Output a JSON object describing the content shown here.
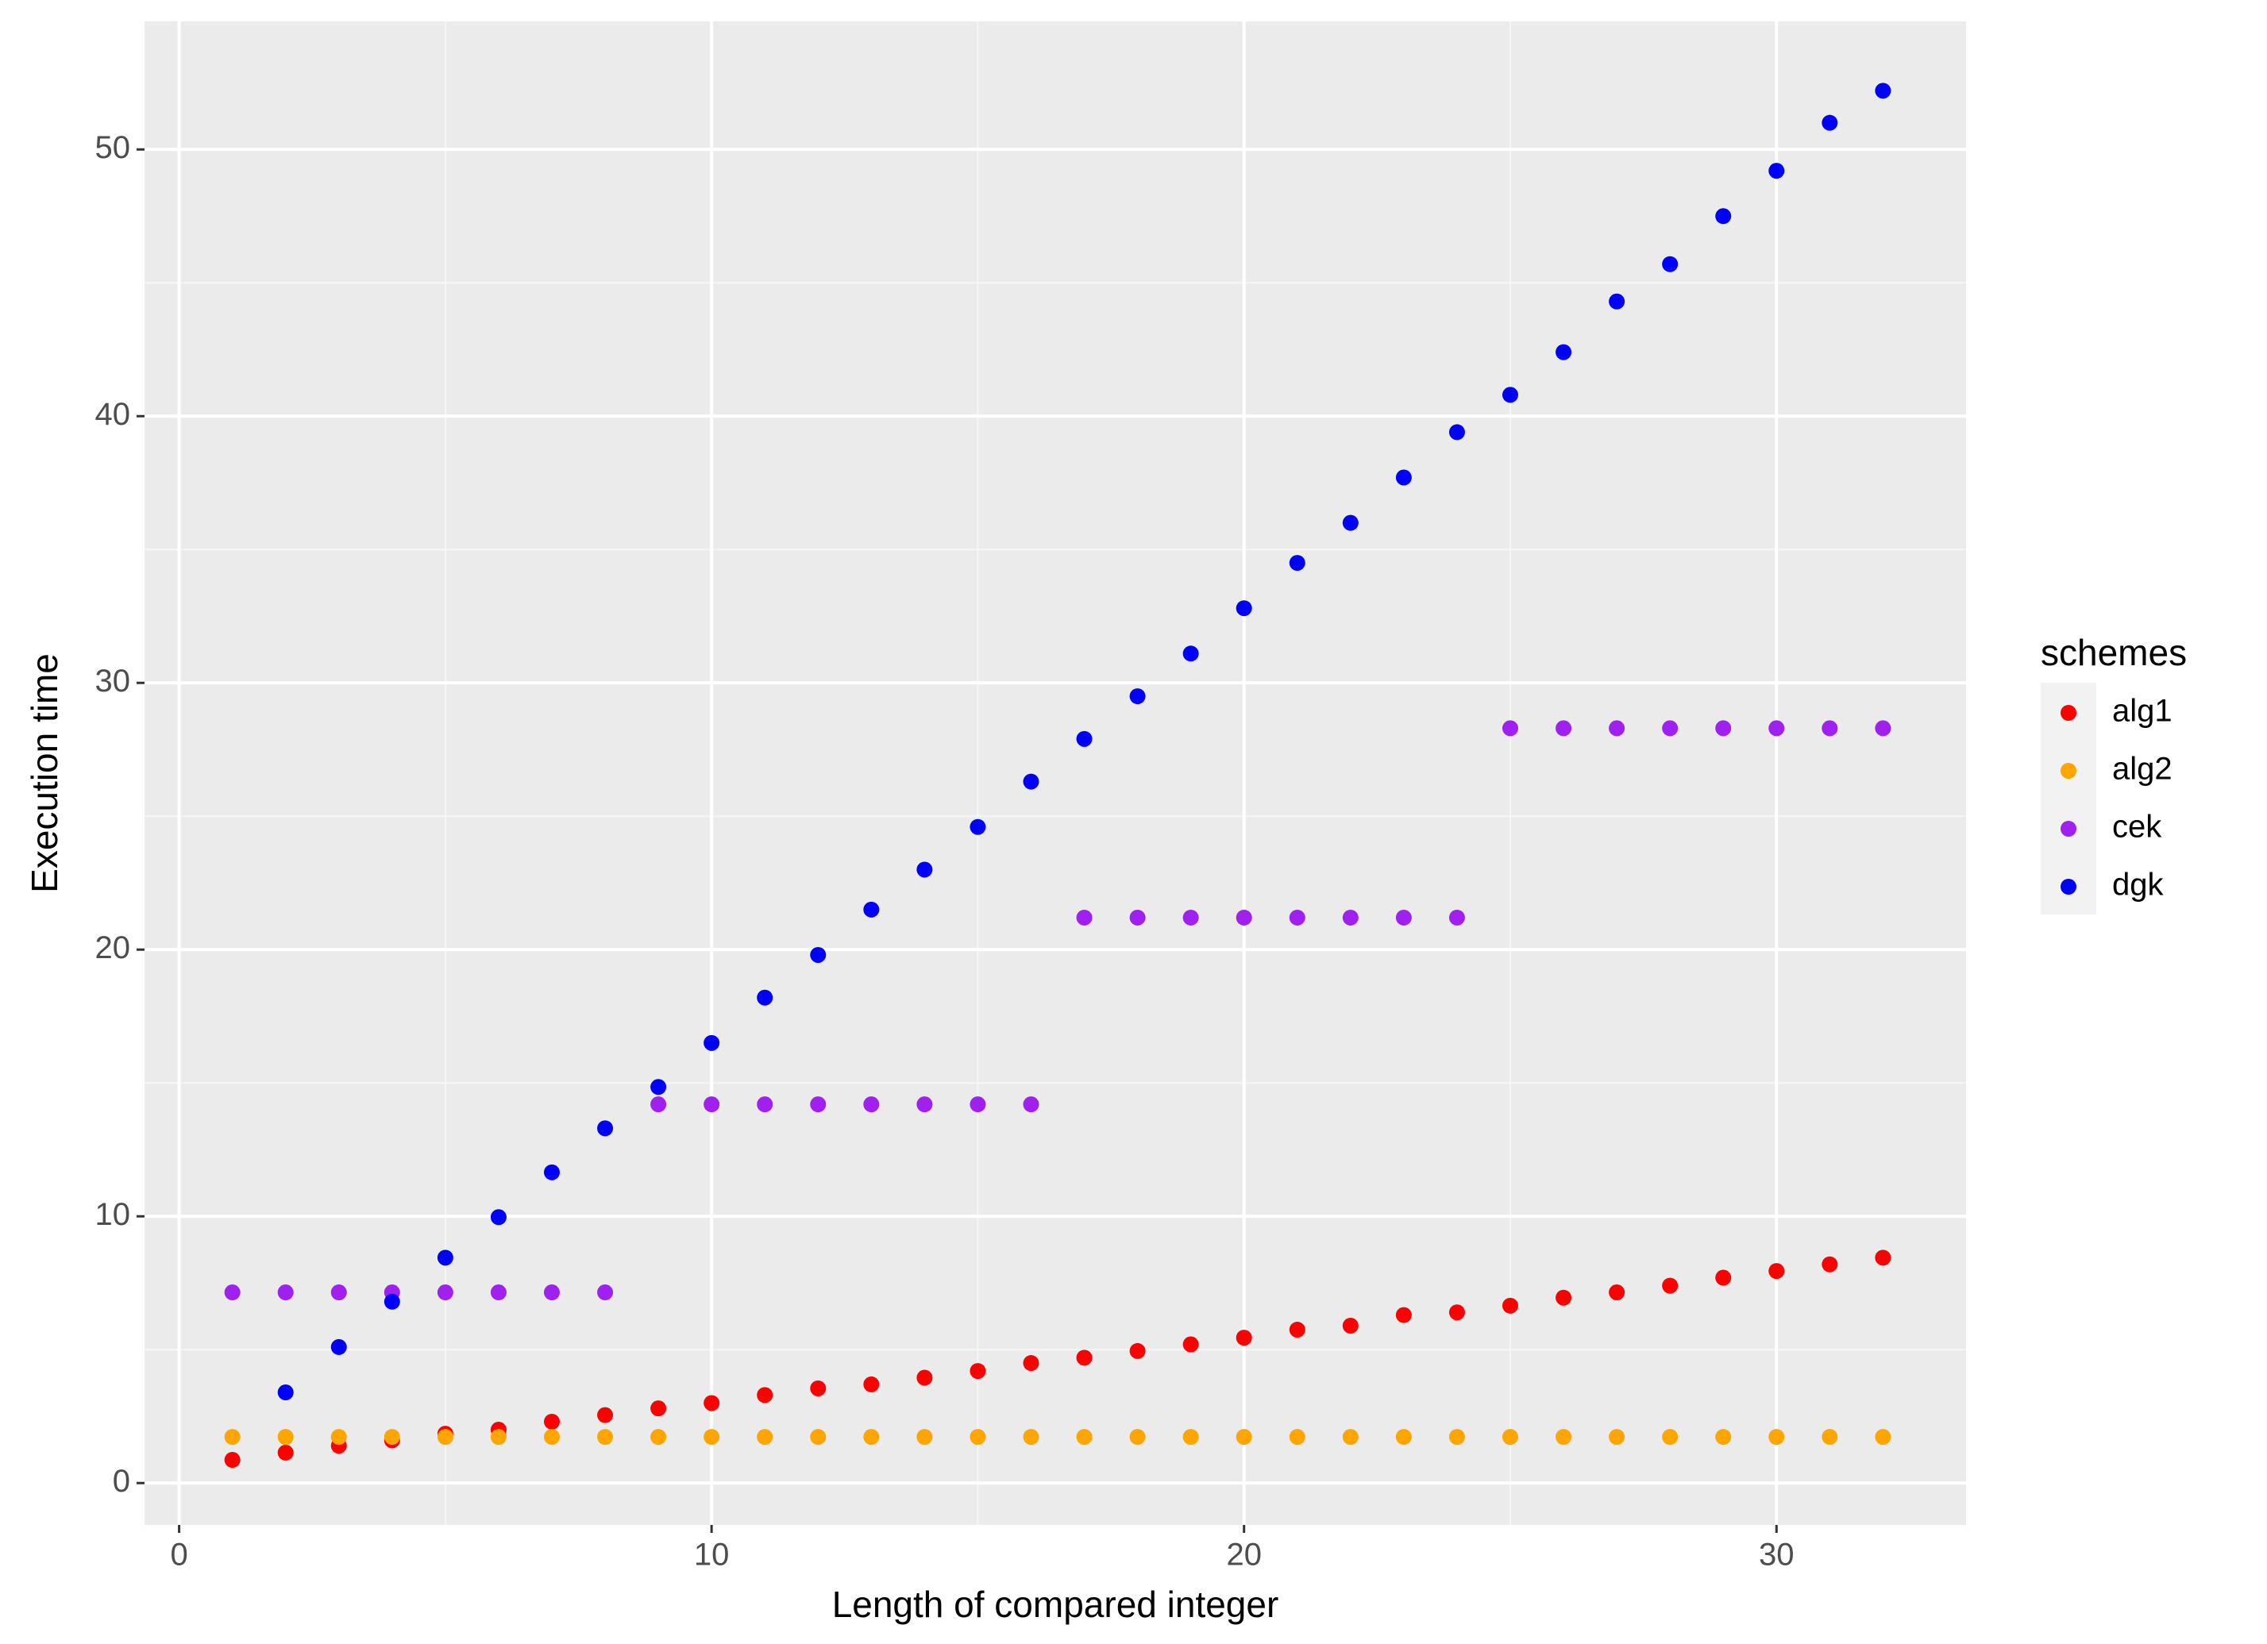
{
  "chart_data": {
    "type": "scatter",
    "x_label": "Length of compared integer",
    "y_label": "Execution time",
    "legend_title": "schemes",
    "legend_position": "right",
    "grid": true,
    "x": [
      1,
      2,
      3,
      4,
      5,
      6,
      7,
      8,
      9,
      10,
      11,
      12,
      13,
      14,
      15,
      16,
      17,
      18,
      19,
      20,
      21,
      22,
      23,
      24,
      25,
      26,
      27,
      28,
      29,
      30,
      31,
      32
    ],
    "xlim": [
      -0.65,
      33.56
    ],
    "ylim": [
      -1.57,
      54.8
    ],
    "xticks": [
      0,
      10,
      20,
      30
    ],
    "yticks": [
      0,
      10,
      20,
      30,
      40,
      50
    ],
    "series": [
      {
        "name": "alg1",
        "color": "#ff0000",
        "values": [
          0.87,
          1.14,
          1.4,
          1.6,
          1.85,
          2.0,
          2.3,
          2.55,
          2.8,
          3.0,
          3.3,
          3.55,
          3.7,
          3.95,
          4.2,
          4.5,
          4.7,
          4.95,
          5.2,
          5.45,
          5.75,
          5.9,
          6.3,
          6.4,
          6.65,
          6.95,
          7.15,
          7.4,
          7.7,
          7.95,
          8.2,
          8.45
        ]
      },
      {
        "name": "alg2",
        "color": "#ffa500",
        "values": [
          1.73,
          1.73,
          1.73,
          1.73,
          1.73,
          1.73,
          1.73,
          1.73,
          1.73,
          1.73,
          1.73,
          1.73,
          1.73,
          1.73,
          1.73,
          1.73,
          1.73,
          1.73,
          1.73,
          1.73,
          1.73,
          1.73,
          1.73,
          1.73,
          1.73,
          1.73,
          1.73,
          1.73,
          1.73,
          1.73,
          1.73,
          1.73
        ]
      },
      {
        "name": "cek",
        "color": "#a020f0",
        "values": [
          7.15,
          7.15,
          7.15,
          7.15,
          7.15,
          7.15,
          7.15,
          7.15,
          14.2,
          14.2,
          14.2,
          14.2,
          14.2,
          14.2,
          14.2,
          14.2,
          21.2,
          21.2,
          21.2,
          21.2,
          21.2,
          21.2,
          21.2,
          21.2,
          28.3,
          28.3,
          28.3,
          28.3,
          28.3,
          28.3,
          28.3,
          28.3
        ]
      },
      {
        "name": "dgk",
        "color": "#0000ff",
        "values": [
          null,
          3.4,
          5.1,
          6.8,
          8.45,
          9.97,
          11.65,
          13.3,
          14.85,
          16.5,
          18.2,
          19.8,
          21.5,
          23.0,
          24.6,
          26.3,
          27.9,
          29.5,
          31.1,
          32.8,
          34.5,
          36.0,
          37.7,
          39.4,
          40.8,
          42.4,
          44.3,
          45.7,
          47.5,
          49.2,
          51.0,
          52.2
        ]
      }
    ]
  }
}
